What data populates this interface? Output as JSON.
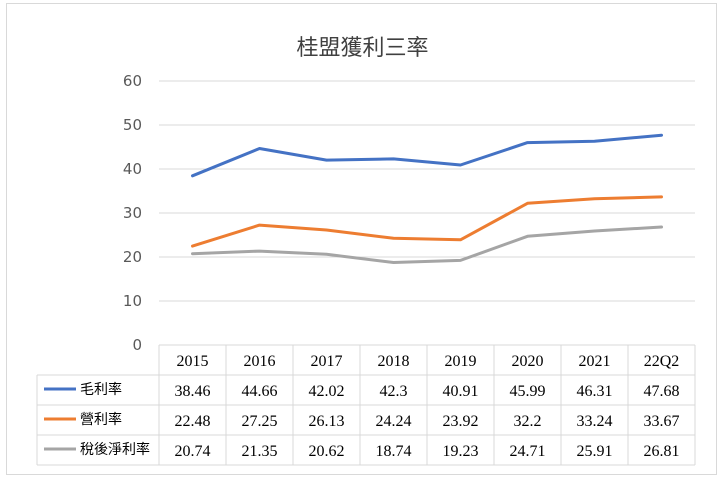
{
  "chart_data": {
    "type": "line",
    "title": "桂盟獲利三率",
    "categories": [
      "2015",
      "2016",
      "2017",
      "2018",
      "2019",
      "2020",
      "2021",
      "22Q2"
    ],
    "ylim": [
      0,
      60
    ],
    "yticks": [
      "0",
      "10",
      "20",
      "30",
      "40",
      "50",
      "60"
    ],
    "grid": true,
    "legend": "data-table",
    "series": [
      {
        "name": "毛利率",
        "color": "#4472C4",
        "values": [
          38.46,
          44.66,
          42.02,
          42.3,
          40.91,
          45.99,
          46.31,
          47.68
        ],
        "labels": [
          "38.46",
          "44.66",
          "42.02",
          "42.3",
          "40.91",
          "45.99",
          "46.31",
          "47.68"
        ]
      },
      {
        "name": "營利率",
        "color": "#ED7D31",
        "values": [
          22.48,
          27.25,
          26.13,
          24.24,
          23.92,
          32.2,
          33.24,
          33.67
        ],
        "labels": [
          "22.48",
          "27.25",
          "26.13",
          "24.24",
          "23.92",
          "32.2",
          "33.24",
          "33.67"
        ]
      },
      {
        "name": "稅後淨利率",
        "color": "#A5A5A5",
        "values": [
          20.74,
          21.35,
          20.62,
          18.74,
          19.23,
          24.71,
          25.91,
          26.81
        ],
        "labels": [
          "20.74",
          "21.35",
          "20.62",
          "18.74",
          "19.23",
          "24.71",
          "25.91",
          "26.81"
        ]
      }
    ]
  }
}
